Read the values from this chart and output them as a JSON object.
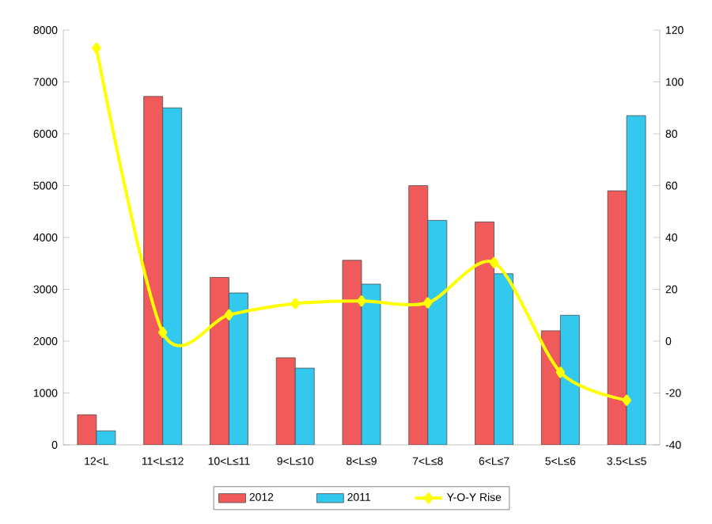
{
  "chart_data": {
    "type": "bar",
    "categories": [
      "12<L",
      "11<L≤12",
      "10<L≤11",
      "9<L≤10",
      "8<L≤9",
      "7<L≤8",
      "6<L≤7",
      "5<L≤6",
      "3.5<L≤5"
    ],
    "series": [
      {
        "name": "2012",
        "color": "#f05a5a",
        "values": [
          580,
          6720,
          3230,
          1680,
          3560,
          5000,
          4300,
          2200,
          4900
        ]
      },
      {
        "name": "2011",
        "color": "#33c8ee",
        "values": [
          270,
          6500,
          2930,
          1480,
          3100,
          4330,
          3300,
          2500,
          6350
        ]
      },
      {
        "name": "Y-O-Y Rise",
        "type": "line",
        "axis": "y2",
        "color": "#ffff00",
        "marker": "diamond",
        "values": [
          113,
          3.4,
          10.2,
          14.5,
          15.5,
          14.8,
          30.3,
          -12,
          -22.8
        ]
      }
    ],
    "ylim": [
      0,
      8000
    ],
    "yticks": [
      0,
      1000,
      2000,
      3000,
      4000,
      5000,
      6000,
      7000,
      8000
    ],
    "y2lim": [
      -40,
      120
    ],
    "y2ticks": [
      -40,
      -20,
      0,
      20,
      40,
      60,
      80,
      100,
      120
    ],
    "legend": "bottom",
    "grid": false
  }
}
